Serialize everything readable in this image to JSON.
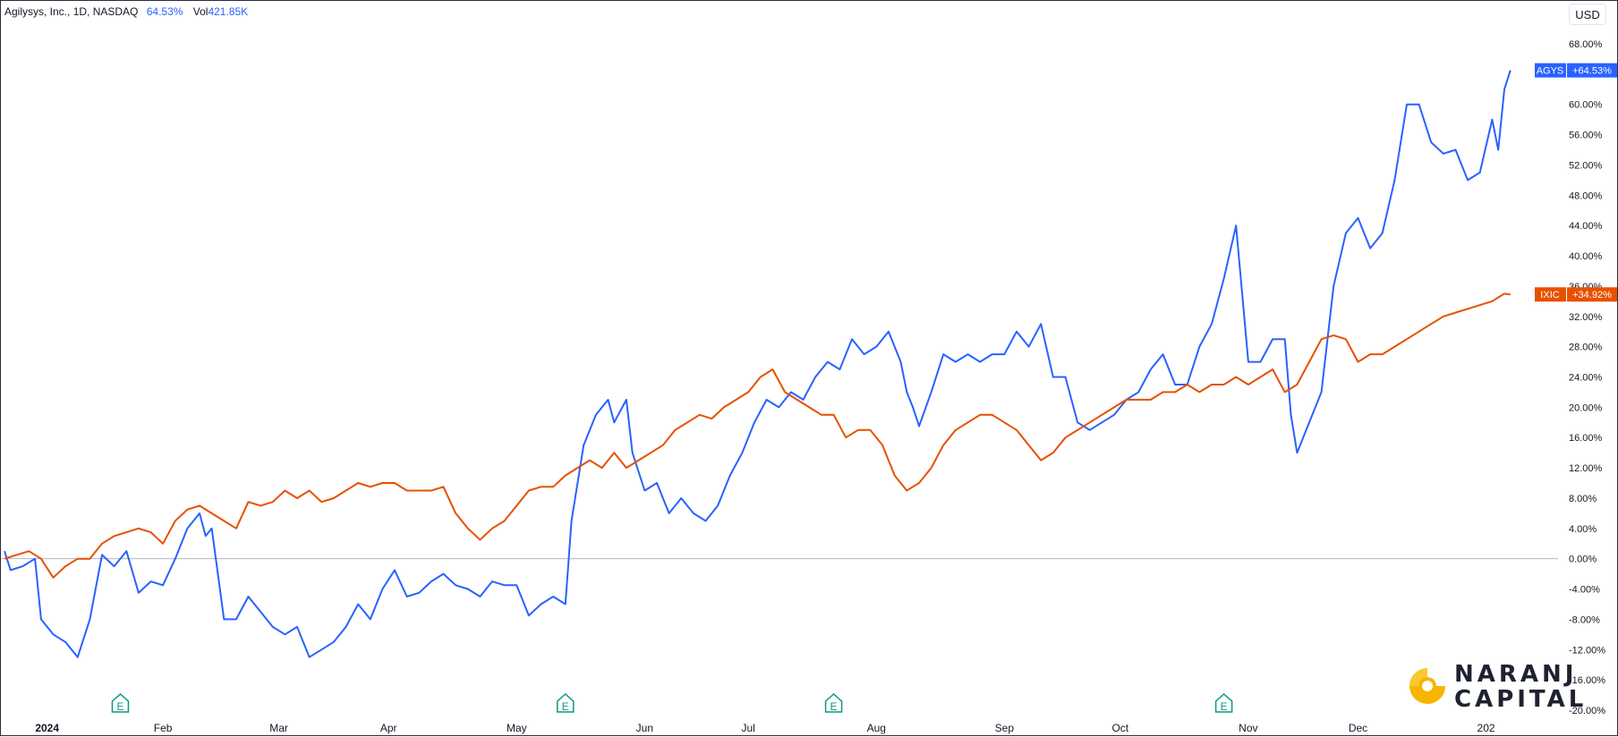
{
  "header": {
    "symbol_info": "Agilysys, Inc., 1D, NASDAQ",
    "change": "64.53%",
    "vol_label": "Vol",
    "vol_value": "421.85K"
  },
  "currency": "USD",
  "tags": {
    "agys": {
      "symbol": "AGYS",
      "value": "+64.53%",
      "color": "#2962ff"
    },
    "ixic": {
      "symbol": "IXIC",
      "value": "+34.92%",
      "color": "#e65100"
    }
  },
  "logo": {
    "line1": "NARANJ",
    "line2": "CAPITAL"
  },
  "chart_data": {
    "type": "line",
    "xlim": [
      0,
      246
    ],
    "ylim": [
      -20,
      68
    ],
    "y_ticks": [
      68,
      60,
      56,
      52,
      48,
      44,
      40,
      36,
      32,
      28,
      24,
      20,
      16,
      12,
      8,
      4,
      0,
      -4,
      -8,
      -12,
      -16,
      -20
    ],
    "y_tick_labels": [
      "68.00%",
      "60.00%",
      "56.00%",
      "52.00%",
      "48.00%",
      "44.00%",
      "40.00%",
      "36.00%",
      "32.00%",
      "28.00%",
      "24.00%",
      "20.00%",
      "16.00%",
      "12.00%",
      "8.00%",
      "4.00%",
      "0.00%",
      "-4.00%",
      "-8.00%",
      "-12.00%",
      "-16.00%",
      "-20.00%"
    ],
    "x_ticks": [
      {
        "label": "2024",
        "x": 7
      },
      {
        "label": "Feb",
        "x": 26
      },
      {
        "label": "Mar",
        "x": 45
      },
      {
        "label": "Apr",
        "x": 63
      },
      {
        "label": "May",
        "x": 84
      },
      {
        "label": "Jun",
        "x": 105
      },
      {
        "label": "Jul",
        "x": 122
      },
      {
        "label": "Aug",
        "x": 143
      },
      {
        "label": "Sep",
        "x": 164
      },
      {
        "label": "Oct",
        "x": 183
      },
      {
        "label": "Nov",
        "x": 204
      },
      {
        "label": "Dec",
        "x": 222
      },
      {
        "label": "202",
        "x": 243
      }
    ],
    "earnings_markers": [
      19,
      92,
      136,
      200
    ],
    "earnings_label": "E",
    "zero_line": 0,
    "series": [
      {
        "name": "AGYS",
        "color": "#2962ff",
        "points": [
          [
            0,
            1
          ],
          [
            1,
            -1.5
          ],
          [
            3,
            -1
          ],
          [
            5,
            0
          ],
          [
            6,
            -8
          ],
          [
            8,
            -10
          ],
          [
            10,
            -11
          ],
          [
            12,
            -13
          ],
          [
            14,
            -8
          ],
          [
            16,
            0.5
          ],
          [
            18,
            -1
          ],
          [
            20,
            1
          ],
          [
            22,
            -4.5
          ],
          [
            24,
            -3
          ],
          [
            26,
            -3.5
          ],
          [
            28,
            0
          ],
          [
            30,
            4
          ],
          [
            32,
            6
          ],
          [
            33,
            3
          ],
          [
            34,
            4
          ],
          [
            36,
            -8
          ],
          [
            38,
            -8
          ],
          [
            40,
            -5
          ],
          [
            42,
            -7
          ],
          [
            44,
            -9
          ],
          [
            46,
            -10
          ],
          [
            48,
            -9
          ],
          [
            50,
            -13
          ],
          [
            52,
            -12
          ],
          [
            54,
            -11
          ],
          [
            56,
            -9
          ],
          [
            58,
            -6
          ],
          [
            60,
            -8
          ],
          [
            62,
            -4
          ],
          [
            64,
            -1.5
          ],
          [
            66,
            -5
          ],
          [
            68,
            -4.5
          ],
          [
            70,
            -3
          ],
          [
            72,
            -2
          ],
          [
            74,
            -3.5
          ],
          [
            76,
            -4
          ],
          [
            78,
            -5
          ],
          [
            80,
            -3
          ],
          [
            82,
            -3.5
          ],
          [
            84,
            -3.5
          ],
          [
            86,
            -7.5
          ],
          [
            88,
            -6
          ],
          [
            90,
            -5
          ],
          [
            92,
            -6
          ],
          [
            93,
            5
          ],
          [
            95,
            15
          ],
          [
            97,
            19
          ],
          [
            99,
            21
          ],
          [
            100,
            18
          ],
          [
            102,
            21
          ],
          [
            103,
            14
          ],
          [
            105,
            9
          ],
          [
            107,
            10
          ],
          [
            109,
            6
          ],
          [
            111,
            8
          ],
          [
            113,
            6
          ],
          [
            115,
            5
          ],
          [
            117,
            7
          ],
          [
            119,
            11
          ],
          [
            121,
            14
          ],
          [
            123,
            18
          ],
          [
            125,
            21
          ],
          [
            127,
            20
          ],
          [
            129,
            22
          ],
          [
            131,
            21
          ],
          [
            133,
            24
          ],
          [
            135,
            26
          ],
          [
            137,
            25
          ],
          [
            139,
            29
          ],
          [
            141,
            27
          ],
          [
            143,
            28
          ],
          [
            145,
            30
          ],
          [
            147,
            26
          ],
          [
            148,
            22
          ],
          [
            149,
            20
          ],
          [
            150,
            17.5
          ],
          [
            152,
            22
          ],
          [
            154,
            27
          ],
          [
            156,
            26
          ],
          [
            158,
            27
          ],
          [
            160,
            26
          ],
          [
            162,
            27
          ],
          [
            164,
            27
          ],
          [
            166,
            30
          ],
          [
            168,
            28
          ],
          [
            170,
            31
          ],
          [
            172,
            24
          ],
          [
            174,
            24
          ],
          [
            176,
            18
          ],
          [
            178,
            17
          ],
          [
            180,
            18
          ],
          [
            182,
            19
          ],
          [
            184,
            21
          ],
          [
            186,
            22
          ],
          [
            188,
            25
          ],
          [
            190,
            27
          ],
          [
            192,
            23
          ],
          [
            194,
            23
          ],
          [
            196,
            28
          ],
          [
            198,
            31
          ],
          [
            200,
            37
          ],
          [
            202,
            44
          ],
          [
            204,
            26
          ],
          [
            206,
            26
          ],
          [
            208,
            29
          ],
          [
            210,
            29
          ],
          [
            211,
            19
          ],
          [
            212,
            14
          ],
          [
            214,
            18
          ],
          [
            216,
            22
          ],
          [
            218,
            36
          ],
          [
            220,
            43
          ],
          [
            222,
            45
          ],
          [
            224,
            41
          ],
          [
            226,
            43
          ],
          [
            228,
            50
          ],
          [
            230,
            60
          ],
          [
            232,
            60
          ],
          [
            234,
            55
          ],
          [
            236,
            53.5
          ],
          [
            238,
            54
          ],
          [
            240,
            50
          ],
          [
            242,
            51
          ],
          [
            244,
            58
          ],
          [
            245,
            54
          ],
          [
            246,
            62
          ],
          [
            247,
            64.5
          ]
        ]
      },
      {
        "name": "IXIC",
        "color": "#e65100",
        "points": [
          [
            0,
            0
          ],
          [
            2,
            0.5
          ],
          [
            4,
            1
          ],
          [
            6,
            0
          ],
          [
            8,
            -2.5
          ],
          [
            10,
            -1
          ],
          [
            12,
            0
          ],
          [
            14,
            0
          ],
          [
            16,
            2
          ],
          [
            18,
            3
          ],
          [
            20,
            3.5
          ],
          [
            22,
            4
          ],
          [
            24,
            3.5
          ],
          [
            26,
            2
          ],
          [
            28,
            5
          ],
          [
            30,
            6.5
          ],
          [
            32,
            7
          ],
          [
            34,
            6
          ],
          [
            36,
            5
          ],
          [
            38,
            4
          ],
          [
            40,
            7.5
          ],
          [
            42,
            7
          ],
          [
            44,
            7.5
          ],
          [
            46,
            9
          ],
          [
            48,
            8
          ],
          [
            50,
            9
          ],
          [
            52,
            7.5
          ],
          [
            54,
            8
          ],
          [
            56,
            9
          ],
          [
            58,
            10
          ],
          [
            60,
            9.5
          ],
          [
            62,
            10
          ],
          [
            64,
            10
          ],
          [
            66,
            9
          ],
          [
            68,
            9
          ],
          [
            70,
            9
          ],
          [
            72,
            9.5
          ],
          [
            74,
            6
          ],
          [
            76,
            4
          ],
          [
            78,
            2.5
          ],
          [
            80,
            4
          ],
          [
            82,
            5
          ],
          [
            84,
            7
          ],
          [
            86,
            9
          ],
          [
            88,
            9.5
          ],
          [
            90,
            9.5
          ],
          [
            92,
            11
          ],
          [
            94,
            12
          ],
          [
            96,
            13
          ],
          [
            98,
            12
          ],
          [
            100,
            14
          ],
          [
            102,
            12
          ],
          [
            104,
            13
          ],
          [
            106,
            14
          ],
          [
            108,
            15
          ],
          [
            110,
            17
          ],
          [
            112,
            18
          ],
          [
            114,
            19
          ],
          [
            116,
            18.5
          ],
          [
            118,
            20
          ],
          [
            120,
            21
          ],
          [
            122,
            22
          ],
          [
            124,
            24
          ],
          [
            126,
            25
          ],
          [
            128,
            22
          ],
          [
            130,
            21
          ],
          [
            132,
            20
          ],
          [
            134,
            19
          ],
          [
            136,
            19
          ],
          [
            138,
            16
          ],
          [
            140,
            17
          ],
          [
            142,
            17
          ],
          [
            144,
            15
          ],
          [
            146,
            11
          ],
          [
            148,
            9
          ],
          [
            150,
            10
          ],
          [
            152,
            12
          ],
          [
            154,
            15
          ],
          [
            156,
            17
          ],
          [
            158,
            18
          ],
          [
            160,
            19
          ],
          [
            162,
            19
          ],
          [
            164,
            18
          ],
          [
            166,
            17
          ],
          [
            168,
            15
          ],
          [
            170,
            13
          ],
          [
            172,
            14
          ],
          [
            174,
            16
          ],
          [
            176,
            17
          ],
          [
            178,
            18
          ],
          [
            180,
            19
          ],
          [
            182,
            20
          ],
          [
            184,
            21
          ],
          [
            186,
            21
          ],
          [
            188,
            21
          ],
          [
            190,
            22
          ],
          [
            192,
            22
          ],
          [
            194,
            23
          ],
          [
            196,
            22
          ],
          [
            198,
            23
          ],
          [
            200,
            23
          ],
          [
            202,
            24
          ],
          [
            204,
            23
          ],
          [
            206,
            24
          ],
          [
            208,
            25
          ],
          [
            210,
            22
          ],
          [
            212,
            23
          ],
          [
            214,
            26
          ],
          [
            216,
            29
          ],
          [
            218,
            29.5
          ],
          [
            220,
            29
          ],
          [
            222,
            26
          ],
          [
            224,
            27
          ],
          [
            226,
            27
          ],
          [
            228,
            28
          ],
          [
            230,
            29
          ],
          [
            232,
            30
          ],
          [
            234,
            31
          ],
          [
            236,
            32
          ],
          [
            238,
            32.5
          ],
          [
            240,
            33
          ],
          [
            242,
            33.5
          ],
          [
            244,
            34
          ],
          [
            246,
            35
          ],
          [
            247,
            34.9
          ]
        ]
      }
    ]
  }
}
